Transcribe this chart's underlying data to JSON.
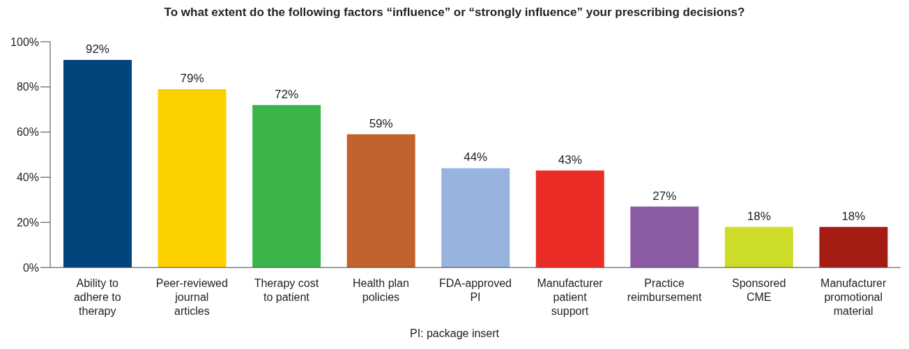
{
  "chart_data": {
    "type": "bar",
    "title": "To what extent do the following factors “influence” or “strongly influence” your prescribing decisions?",
    "categories": [
      "Ability to adhere to therapy",
      "Peer-reviewed journal articles",
      "Therapy cost to patient",
      "Health plan policies",
      "FDA-approved PI",
      "Manufacturer patient support",
      "Practice reimbursement",
      "Sponsored CME",
      "Manufacturer promotional material"
    ],
    "values": [
      92,
      79,
      72,
      59,
      44,
      43,
      27,
      18,
      18
    ],
    "value_labels": [
      "92%",
      "79%",
      "72%",
      "59%",
      "44%",
      "43%",
      "27%",
      "18%",
      "18%"
    ],
    "colors": [
      "#00457c",
      "#fdd000",
      "#3bb54a",
      "#c2622d",
      "#97b4df",
      "#ec2d25",
      "#8b5ca4",
      "#cddc29",
      "#a51c14"
    ],
    "ylim": [
      0,
      100
    ],
    "yticks": [
      {
        "value": 0,
        "label": "0%"
      },
      {
        "value": 20,
        "label": "20%"
      },
      {
        "value": 40,
        "label": "40%"
      },
      {
        "value": 60,
        "label": "60%"
      },
      {
        "value": 80,
        "label": "80%"
      },
      {
        "value": 100,
        "label": "100%"
      }
    ],
    "grid": false,
    "legend": false,
    "annotations": [
      "PI: package insert"
    ]
  }
}
